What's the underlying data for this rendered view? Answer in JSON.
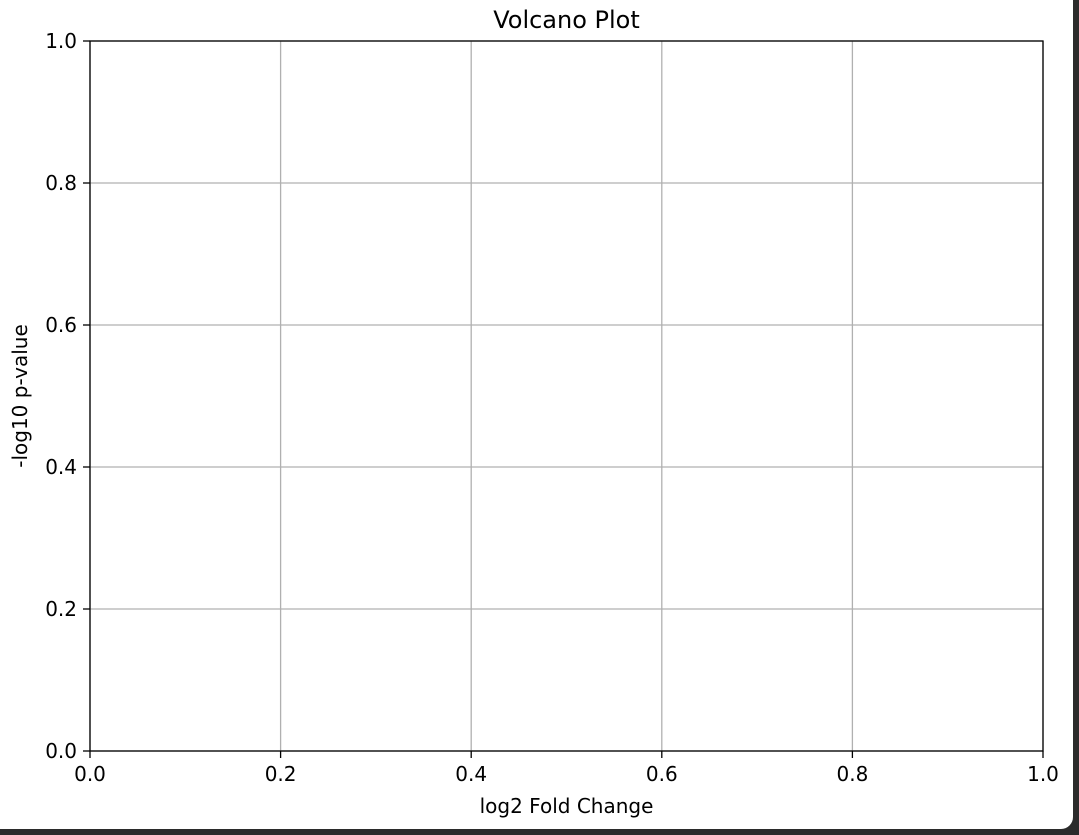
{
  "chart_data": {
    "type": "scatter",
    "title": "Volcano Plot",
    "xlabel": "log2 Fold Change",
    "ylabel": "-log10 p-value",
    "xlim": [
      0.0,
      1.0
    ],
    "ylim": [
      0.0,
      1.0
    ],
    "x_ticks": [
      0.0,
      0.2,
      0.4,
      0.6,
      0.8,
      1.0
    ],
    "x_tick_labels": [
      "0.0",
      "0.2",
      "0.4",
      "0.6",
      "0.8",
      "1.0"
    ],
    "y_ticks": [
      0.0,
      0.2,
      0.4,
      0.6,
      0.8,
      1.0
    ],
    "y_tick_labels": [
      "0.0",
      "0.2",
      "0.4",
      "0.6",
      "0.8",
      "1.0"
    ],
    "grid": true,
    "series": [],
    "colors": {
      "grid": "#b0b0b0",
      "axis": "#000000",
      "background": "#ffffff"
    }
  }
}
